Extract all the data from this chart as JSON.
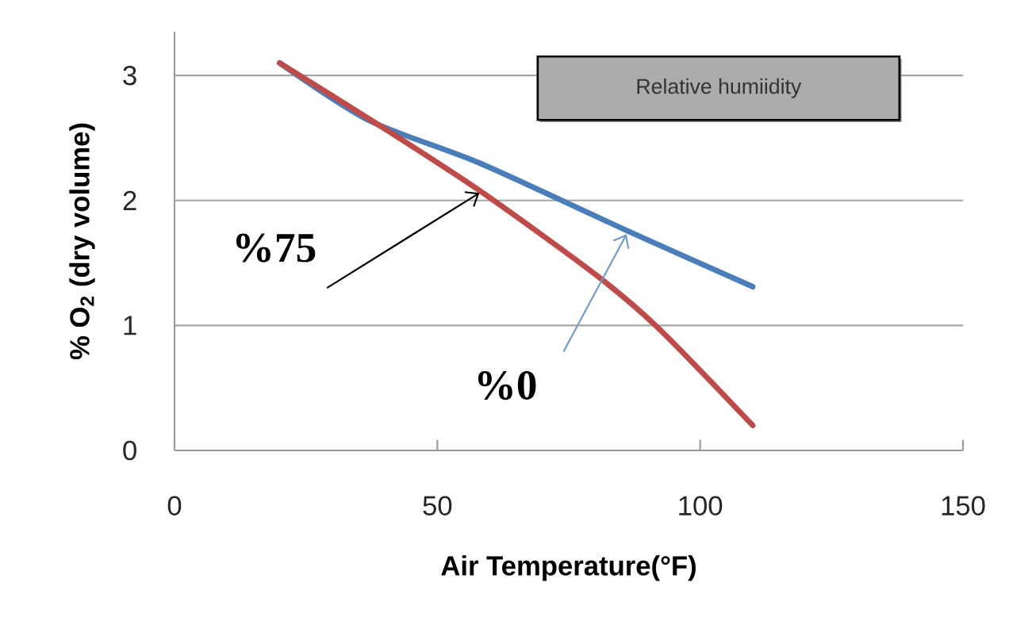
{
  "chart_data": {
    "type": "line",
    "xlabel": "Air Temperature(°F)",
    "ylabel": "% O$_{2}$ (dry volume)",
    "xlim": [
      0,
      150
    ],
    "xticks": [
      0,
      50,
      100,
      150
    ],
    "ylim": [
      0,
      3.35
    ],
    "yticks": [
      0,
      1,
      2,
      3
    ],
    "grid": "y",
    "series": [
      {
        "color": "#4a7ebb",
        "x": [
          20,
          37,
          58,
          86,
          110
        ],
        "values": [
          3.1,
          2.64,
          2.3,
          1.76,
          1.31
        ]
      },
      {
        "color": "#be4b48",
        "x": [
          20,
          39,
          58,
          80,
          92,
          110
        ],
        "values": [
          3.1,
          2.6,
          2.08,
          1.41,
          0.98,
          0.2
        ]
      }
    ],
    "annotations": [
      {
        "text": "%75",
        "x": 58,
        "y": 2.06
      },
      {
        "text": "%0",
        "x": 86,
        "y": 1.73
      },
      "Relative humiidity"
    ]
  }
}
